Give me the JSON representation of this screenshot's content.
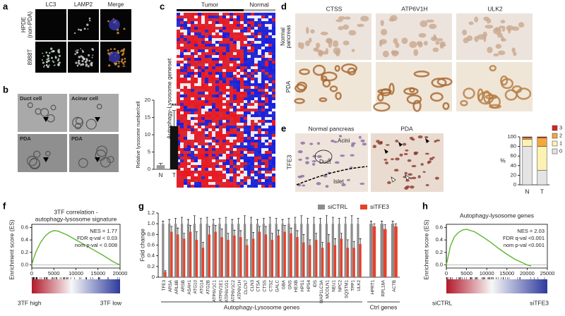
{
  "panels": {
    "a": {
      "label": "a",
      "channels": [
        "LC3",
        "LAMP2",
        "Merge"
      ],
      "rows": [
        [
          "HPDE",
          "(non-PDA)"
        ],
        [
          "8988T"
        ]
      ]
    },
    "b": {
      "label": "b",
      "images": [
        "Duct cell",
        "Acinar cell",
        "PDA",
        "PDA"
      ],
      "chart": {
        "type": "bar",
        "ylabel": "Relative lysosome number/cell",
        "categories": [
          "N",
          "T"
        ],
        "values": [
          1.2,
          12.5
        ],
        "errors": [
          0.5,
          4.5
        ],
        "colors": [
          "#999999",
          "#111111"
        ],
        "ylim": [
          0,
          20
        ],
        "yticks": [
          0,
          5,
          10,
          15,
          20
        ],
        "annotation": "**"
      }
    },
    "c": {
      "label": "c",
      "groups": [
        "Tumor",
        "Normal"
      ],
      "ylabel": "Autophagy-Lysosome geneset"
    },
    "d": {
      "label": "d",
      "columns": [
        "CTSS",
        "ATP6V1H",
        "ULK2"
      ],
      "rows": [
        [
          "Normal",
          "pancreas"
        ],
        [
          "PDA"
        ]
      ]
    },
    "e": {
      "label": "e",
      "columns": [
        "Normal pancreas",
        "PDA"
      ],
      "row": "TFE3",
      "annotations": [
        "Acini",
        "Duct",
        "Islet"
      ],
      "chart": {
        "type": "stacked-bar",
        "ylabel": "%",
        "categories": [
          "N",
          "T"
        ],
        "series": [
          {
            "name": "3",
            "color": "#d7261e",
            "values": [
              2,
              2
            ]
          },
          {
            "name": "2",
            "color": "#f4a83a",
            "values": [
              3,
              18
            ]
          },
          {
            "name": "1",
            "color": "#fdf2b3",
            "values": [
              15,
              50
            ]
          },
          {
            "name": "0",
            "color": "#e4e4e4",
            "values": [
              80,
              30
            ]
          }
        ],
        "ylim": [
          0,
          100
        ],
        "yticks": [
          0,
          20,
          40,
          60,
          80,
          100
        ]
      }
    },
    "f": {
      "label": "f",
      "chart": {
        "type": "line",
        "title": [
          "3TF correlation -",
          "autophagy-lysosome signature"
        ],
        "stats": [
          "NES = 1.77",
          "FDR q-val < 0.03",
          "nom p-val < 0.008"
        ],
        "ylabel": "Enrichment score (ES)",
        "x": [
          0,
          500,
          1000,
          2000,
          3000,
          4000,
          5000,
          6000,
          8000,
          10000,
          12000,
          14000,
          16000,
          18000,
          19000,
          20000
        ],
        "values": [
          0,
          0.12,
          0.22,
          0.36,
          0.46,
          0.52,
          0.55,
          0.54,
          0.48,
          0.4,
          0.32,
          0.24,
          0.16,
          0.07,
          0.03,
          0
        ],
        "color": "#5cb82e",
        "xlim": [
          0,
          20000
        ],
        "xticks": [
          0,
          5000,
          10000,
          15000,
          20000
        ],
        "ylim": [
          -0.05,
          0.65
        ],
        "yticks": [
          {
            "value": 0,
            "label": "0.0"
          },
          0.2,
          0.4,
          0.6
        ],
        "rank_labels": [
          "3TF high",
          "3TF low"
        ]
      }
    },
    "g": {
      "label": "g",
      "chart": {
        "type": "grouped-bar",
        "ylabel": "Fold change",
        "groups": [
          {
            "label": "Autophagy-Lysosome genes",
            "categories": [
              "TFE3",
              "ARSA",
              "ARL8B",
              "ARSB",
              "ASAH1",
              "ATG10",
              "ATG14",
              "ATG2B",
              "ATP6V1C1",
              "ATP6V1E1",
              "ATP6V1G1",
              "ATP6V1C2",
              "ATP6V1H",
              "CLCN7",
              "CLN3",
              "CTSA",
              "CTSS",
              "CTSZ",
              "GALC",
              "GBA",
              "GNS",
              "HEXB",
              "HPS1",
              "HPS4",
              "IDS",
              "MAP1LC3A",
              "MCOLN1",
              "NEU1",
              "NPC2",
              "SQSTM1",
              "TPP1",
              "ULK2"
            ]
          },
          {
            "label": "Ctrl genes",
            "categories": [
              "HPRT1",
              "RPL18A",
              "ACTB"
            ]
          }
        ],
        "series": [
          {
            "name": "siCTRL",
            "color": "#8c8c8c",
            "values": [
              1,
              1,
              1,
              1,
              1,
              1,
              1,
              1,
              1,
              1,
              1,
              1,
              1,
              1,
              1,
              1,
              1,
              1,
              1,
              1,
              1,
              1,
              1,
              1,
              1,
              1,
              1,
              1,
              1,
              1,
              1,
              1,
              1,
              1,
              1
            ],
            "errors": [
              0.05,
              0.08,
              0.1,
              0.12,
              0.08,
              0.15,
              0.1,
              0.12,
              0.08,
              0.1,
              0.12,
              0.08,
              0.1,
              0.15,
              0.12,
              0.08,
              0.1,
              0.12,
              0.1,
              0.08,
              0.1,
              0.12,
              0.15,
              0.1,
              0.12,
              0.1,
              0.15,
              0.12,
              0.1,
              0.12,
              0.15,
              0.1,
              0.05,
              0.05,
              0.05
            ]
          },
          {
            "name": "siTFE3",
            "color": "#e8402a",
            "values": [
              0.1,
              0.85,
              0.8,
              0.72,
              0.85,
              0.7,
              0.55,
              0.8,
              0.85,
              0.75,
              0.7,
              0.78,
              0.75,
              0.6,
              0.72,
              0.85,
              0.8,
              0.7,
              0.78,
              0.85,
              0.82,
              0.75,
              0.65,
              0.6,
              0.7,
              0.55,
              0.65,
              0.6,
              0.72,
              0.55,
              0.55,
              0.62,
              0.95,
              0.9,
              0.95
            ],
            "errors": [
              0.02,
              0.1,
              0.12,
              0.1,
              0.12,
              0.15,
              0.1,
              0.15,
              0.12,
              0.15,
              0.12,
              0.1,
              0.12,
              0.1,
              0.12,
              0.1,
              0.15,
              0.12,
              0.1,
              0.12,
              0.1,
              0.12,
              0.15,
              0.1,
              0.12,
              0.1,
              0.15,
              0.12,
              0.1,
              0.15,
              0.12,
              0.1,
              0.05,
              0.08,
              0.05
            ]
          }
        ],
        "ylim": [
          0,
          1.2
        ],
        "yticks": [
          0,
          0.2,
          0.4,
          0.6,
          0.8,
          {
            "value": 1,
            "label": "1.0"
          },
          1.2
        ]
      }
    },
    "h": {
      "label": "h",
      "chart": {
        "type": "line",
        "title": [
          "Autophagy-lysosome genes"
        ],
        "stats": [
          "NES = 2.03",
          "FDR q-val <0.001",
          "nom p-val <0.001"
        ],
        "ylabel": "Enrichment score (ES)",
        "x": [
          0,
          500,
          1000,
          2000,
          3000,
          4000,
          5000,
          7000,
          9000,
          11000,
          13000,
          15000,
          17000,
          19000,
          20000,
          21000
        ],
        "values": [
          0,
          0.15,
          0.3,
          0.45,
          0.52,
          0.56,
          0.57,
          0.53,
          0.45,
          0.36,
          0.26,
          0.17,
          0.09,
          0.03,
          0,
          -0.02
        ],
        "color": "#5cb82e",
        "xlim": [
          0,
          25000
        ],
        "xticks": [
          0,
          5000,
          10000,
          15000,
          20000,
          25000
        ],
        "ylim": [
          -0.05,
          0.65
        ],
        "yticks": [
          {
            "value": 0,
            "label": "0.0"
          },
          0.2,
          0.4,
          0.6
        ],
        "rank_labels": [
          "siCTRL",
          "siTFE3"
        ]
      }
    }
  }
}
